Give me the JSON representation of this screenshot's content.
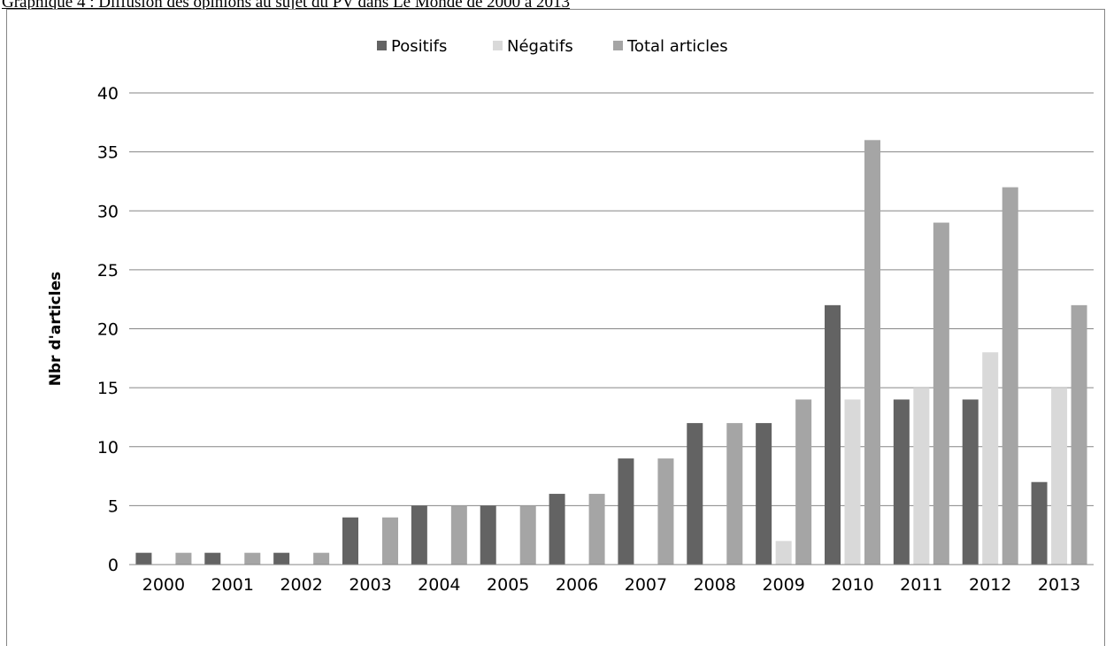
{
  "caption": "Graphique 4 : Diffusion des opinions au sujet du PV dans Le Monde de 2000 à 2013",
  "chart_data": {
    "type": "bar",
    "title": "",
    "xlabel": "",
    "ylabel": "Nbr d'articles",
    "ylim": [
      0,
      40
    ],
    "yticks": [
      0,
      5,
      10,
      15,
      20,
      25,
      30,
      35,
      40
    ],
    "grid": true,
    "legend_position": "top",
    "categories": [
      "2000",
      "2001",
      "2002",
      "2003",
      "2004",
      "2005",
      "2006",
      "2007",
      "2008",
      "2009",
      "2010",
      "2011",
      "2012",
      "2013"
    ],
    "series": [
      {
        "name": "Positifs",
        "color": "#636363",
        "values": [
          1,
          1,
          1,
          4,
          5,
          5,
          6,
          9,
          12,
          12,
          22,
          14,
          14,
          7
        ]
      },
      {
        "name": "Négatifs",
        "color": "#d9d9d9",
        "values": [
          0,
          0,
          0,
          0,
          0,
          0,
          0,
          0,
          0,
          2,
          14,
          15,
          18,
          15
        ]
      },
      {
        "name": "Total articles",
        "color": "#a5a5a5",
        "values": [
          1,
          1,
          1,
          4,
          5,
          5,
          6,
          9,
          12,
          14,
          36,
          29,
          32,
          22
        ]
      }
    ]
  }
}
